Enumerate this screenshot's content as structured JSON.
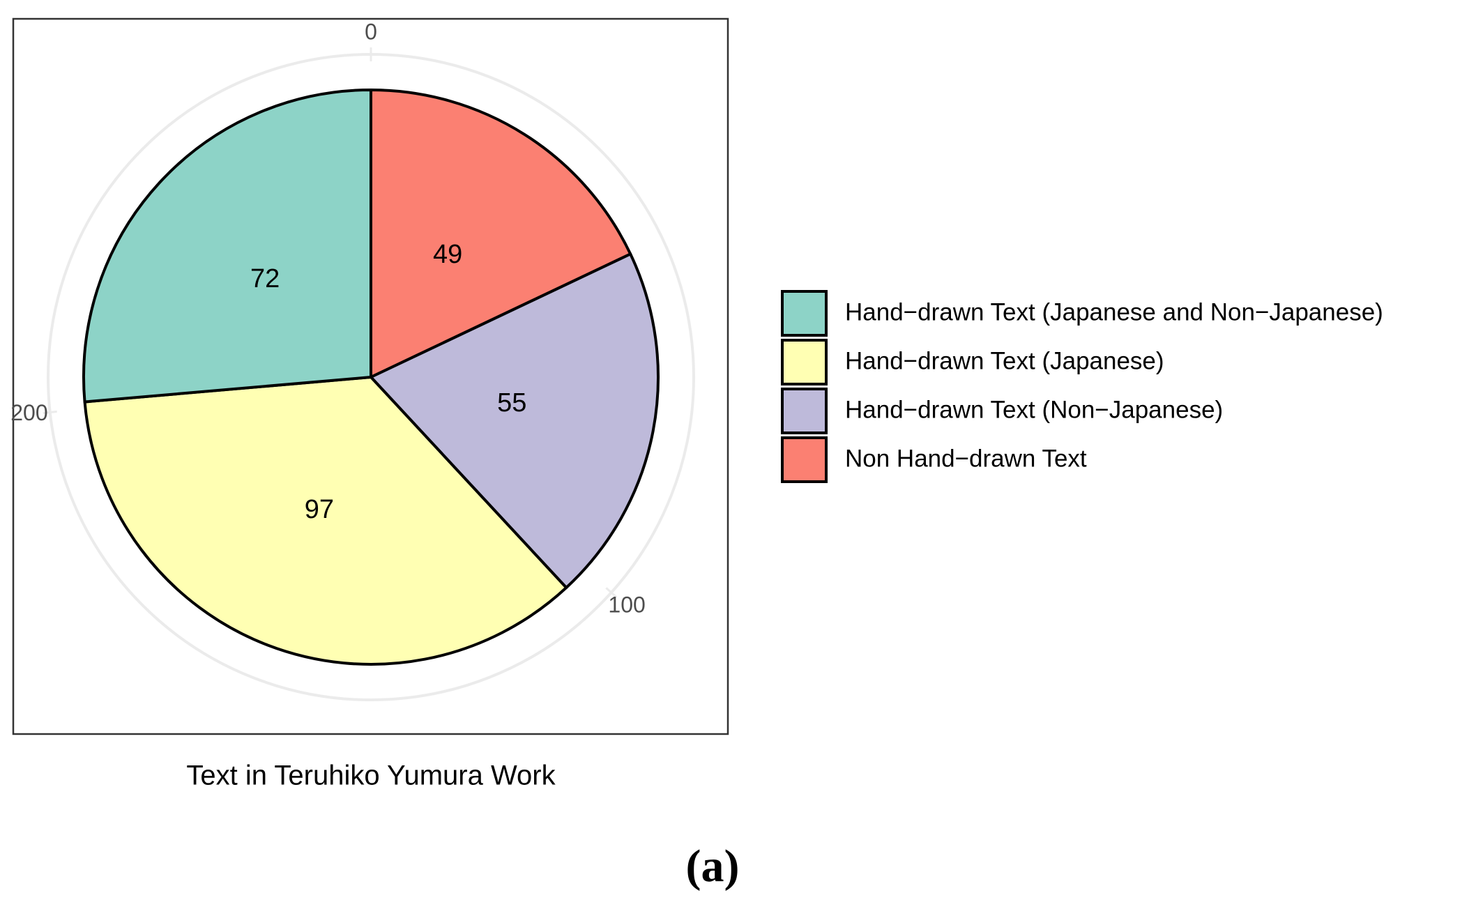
{
  "chart_data": {
    "type": "pie",
    "title": "Text in Teruhiko Yumura Work",
    "caption": "(a)",
    "categories": [
      "Hand−drawn Text (Japanese and Non−Japanese)",
      "Hand−drawn Text (Japanese)",
      "Hand−drawn Text (Non−Japanese)",
      "Non Hand−drawn Text"
    ],
    "values": [
      72,
      97,
      55,
      49
    ],
    "colors": [
      "#8dd3c7",
      "#ffffb3",
      "#bebada",
      "#fb8072"
    ],
    "ylim": [
      0,
      273
    ],
    "yticks": [
      0,
      100,
      200
    ],
    "legend": "right"
  }
}
